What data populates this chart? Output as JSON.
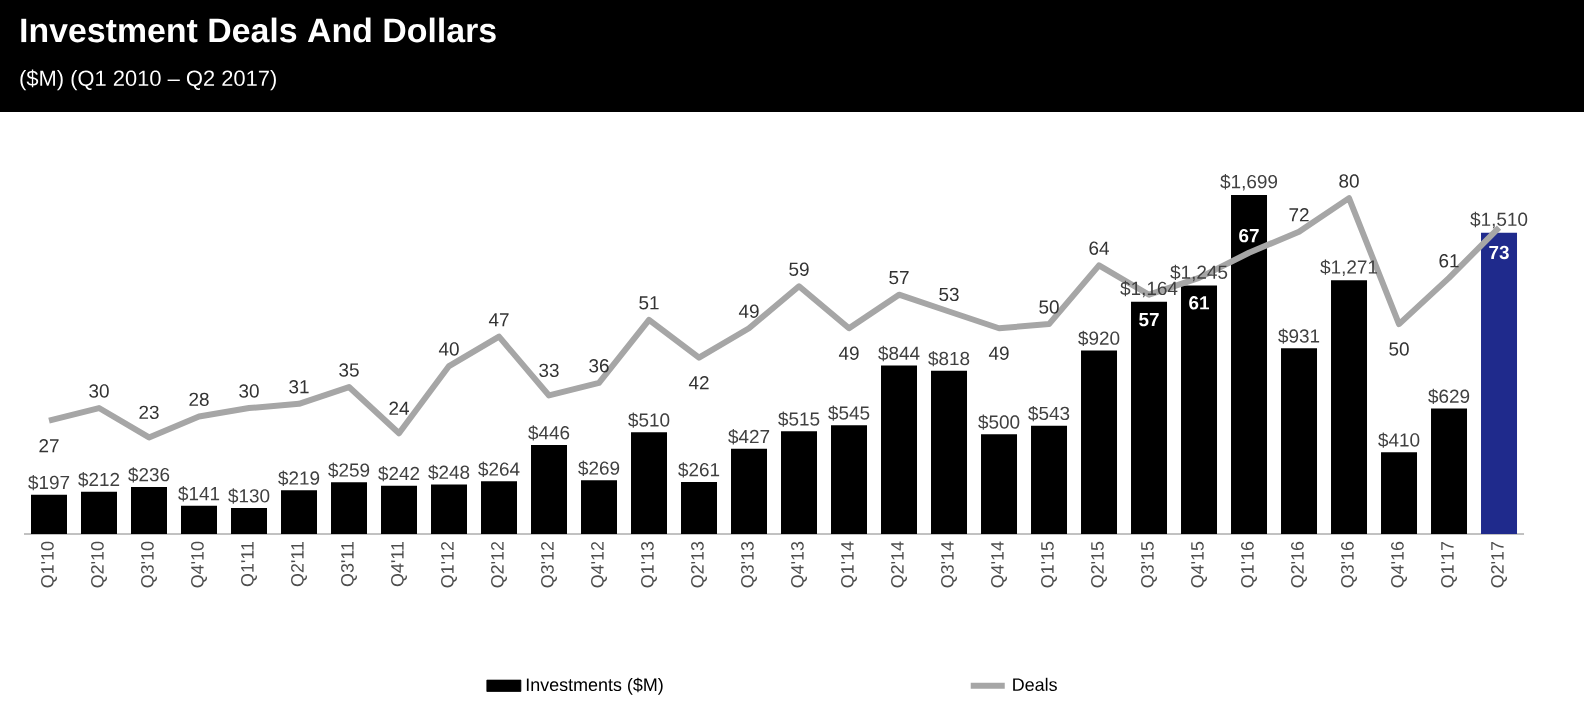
{
  "chart_data": {
    "type": "bar",
    "title": "Investment Deals And Dollars",
    "subtitle": "($M) (Q1 2010 – Q2 2017)",
    "categories": [
      "Q1'10",
      "Q2'10",
      "Q3'10",
      "Q4'10",
      "Q1'11",
      "Q2'11",
      "Q3'11",
      "Q4'11",
      "Q1'12",
      "Q2'12",
      "Q3'12",
      "Q4'12",
      "Q1'13",
      "Q2'13",
      "Q3'13",
      "Q4'13",
      "Q1'14",
      "Q2'14",
      "Q3'14",
      "Q4'14",
      "Q1'15",
      "Q2'15",
      "Q3'15",
      "Q4'15",
      "Q1'16",
      "Q2'16",
      "Q3'16",
      "Q4'16",
      "Q1'17",
      "Q2'17"
    ],
    "series": [
      {
        "name": "Investments ($M)",
        "colors": [
          "#000000",
          "#000000",
          "#000000",
          "#000000",
          "#000000",
          "#000000",
          "#000000",
          "#000000",
          "#000000",
          "#000000",
          "#000000",
          "#000000",
          "#000000",
          "#000000",
          "#000000",
          "#000000",
          "#000000",
          "#000000",
          "#000000",
          "#000000",
          "#000000",
          "#000000",
          "#000000",
          "#000000",
          "#000000",
          "#000000",
          "#000000",
          "#000000",
          "#000000",
          "#1f2a8c"
        ],
        "values": [
          197,
          212,
          236,
          141,
          130,
          219,
          259,
          242,
          248,
          264,
          446,
          269,
          510,
          261,
          427,
          515,
          545,
          844,
          818,
          500,
          543,
          920,
          1164,
          1245,
          1699,
          931,
          1271,
          410,
          629,
          1510
        ],
        "value_labels": [
          "$197",
          "$212",
          "$236",
          "$141",
          "$130",
          "$219",
          "$259",
          "$242",
          "$248",
          "$264",
          "$446",
          "$269",
          "$510",
          "$261",
          "$427",
          "$515",
          "$545",
          "$844",
          "$818",
          "$500",
          "$543",
          "$920",
          "$1,164",
          "$1,245",
          "$1,699",
          "$931",
          "$1,271",
          "$410",
          "$629",
          "$1,510"
        ]
      },
      {
        "name": "Deals",
        "type": "line",
        "axis": "y2",
        "color": "#a6a6a6",
        "values": [
          27,
          30,
          23,
          28,
          30,
          31,
          35,
          24,
          40,
          47,
          33,
          36,
          51,
          42,
          49,
          59,
          49,
          57,
          53,
          49,
          50,
          64,
          57,
          61,
          67,
          72,
          80,
          50,
          61,
          73
        ],
        "value_labels": [
          "27",
          "30",
          "23",
          "28",
          "30",
          "31",
          "35",
          "24",
          "40",
          "47",
          "33",
          "36",
          "51",
          "42",
          "49",
          "59",
          "49",
          "57",
          "53",
          "49",
          "50",
          "64",
          "57",
          "61",
          "67",
          "72",
          "80",
          "50",
          "61",
          "73"
        ]
      }
    ],
    "legend": "bottom"
  }
}
